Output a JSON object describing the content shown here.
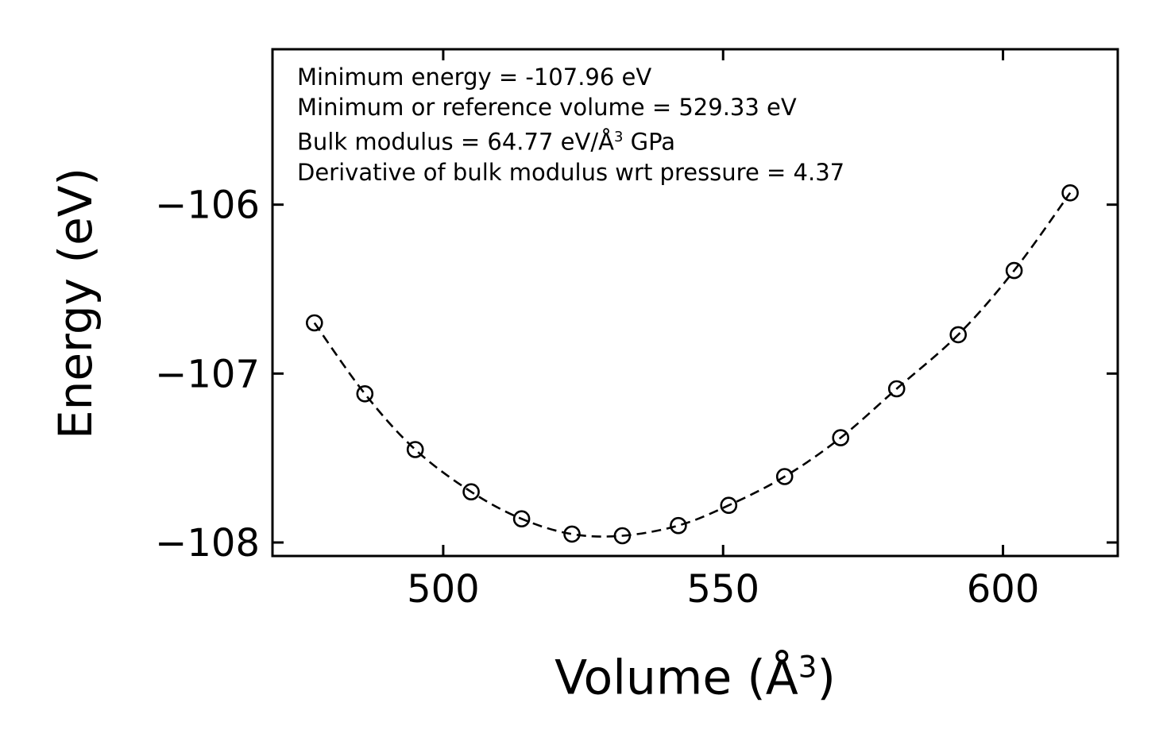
{
  "figure": {
    "background": "#ffffff",
    "foreground": "#000000"
  },
  "chart_data": {
    "type": "scatter",
    "title": "",
    "ylabel": "Energy (eV)",
    "xlabel_parts": {
      "pre": "Volume (Å",
      "sup": "3",
      "post": ")"
    },
    "series_name": "energy-volume points with dashed EOS fit curve",
    "marker": "open-circle",
    "line_style": "dashed",
    "color": "#000000",
    "grid": false,
    "legend": "none",
    "x": [
      477,
      486,
      495,
      505,
      514,
      523,
      532,
      542,
      551,
      561,
      571,
      581,
      592,
      602,
      612
    ],
    "y": [
      -106.7,
      -107.12,
      -107.45,
      -107.7,
      -107.86,
      -107.95,
      -107.96,
      -107.9,
      -107.78,
      -107.61,
      -107.38,
      -107.09,
      -106.77,
      -106.39,
      -105.93
    ],
    "xlim": [
      469.5,
      620.5
    ],
    "ylim": [
      -108.08,
      -105.08
    ],
    "xtick_values": [
      500,
      550,
      600
    ],
    "xtick_labels": [
      "500",
      "550",
      "600"
    ],
    "ytick_values": [
      -106,
      -107,
      -108
    ],
    "ytick_labels": [
      "−106",
      "−107",
      "−108"
    ],
    "annotations": {
      "line1": "Minimum energy = -107.96 eV",
      "line2": "Minimum or reference volume = 529.33 eV",
      "line3_parts": {
        "pre": "Bulk modulus = 64.77 eV/Å",
        "sup": "3",
        "post": " GPa"
      },
      "line4": "Derivative of bulk modulus wrt pressure = 4.37"
    }
  }
}
